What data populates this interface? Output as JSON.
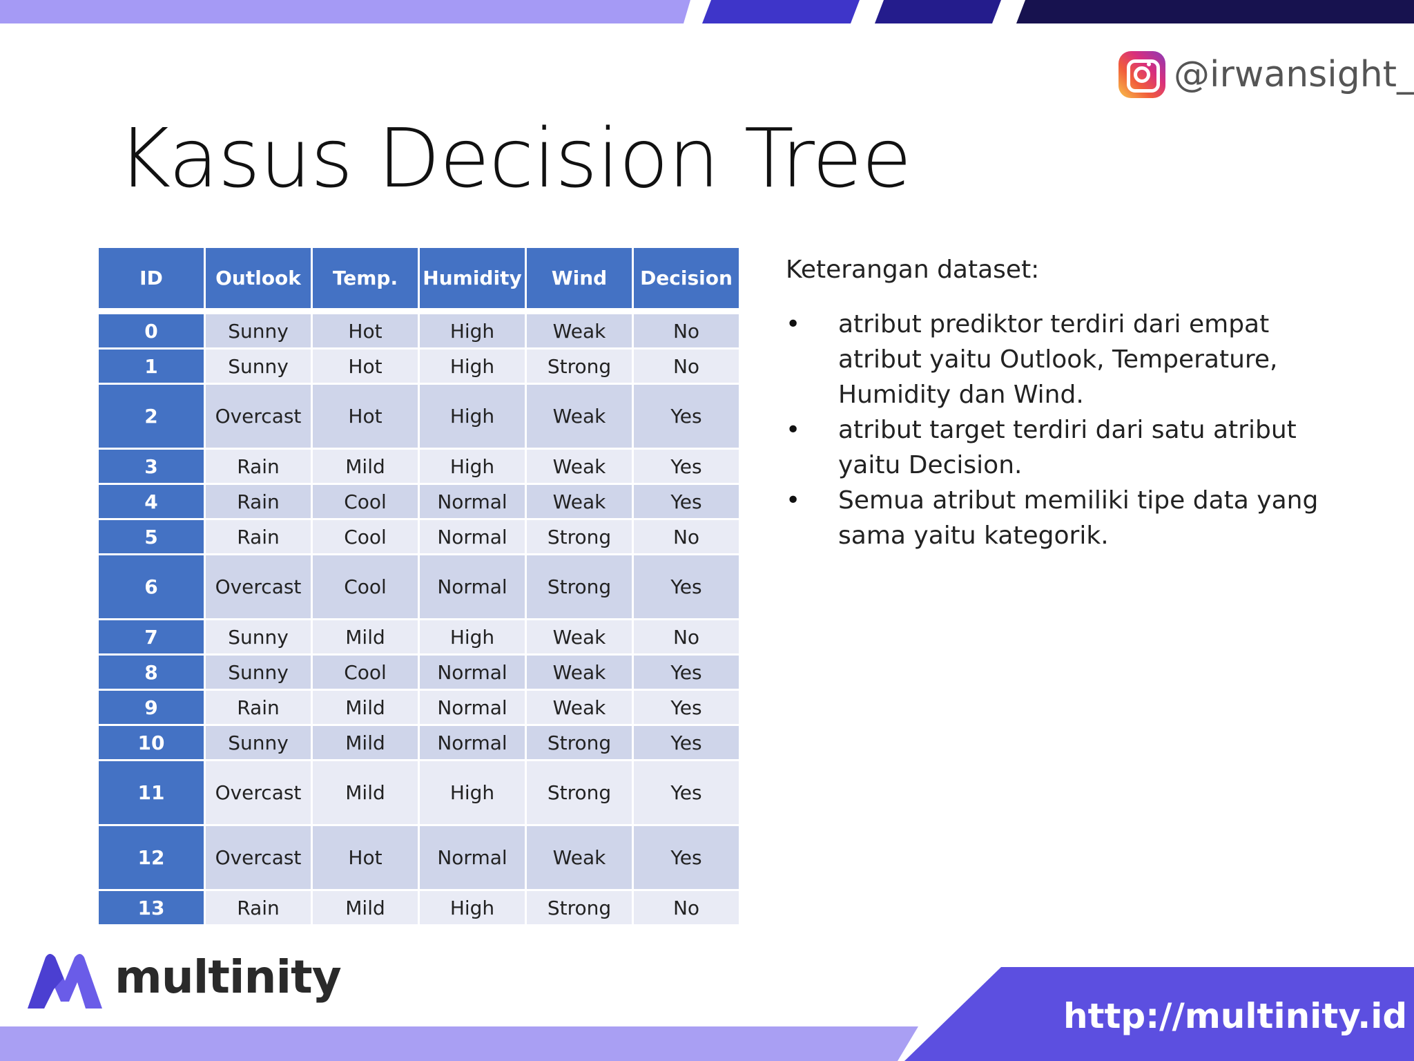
{
  "branding": {
    "instagram_handle": "@irwansight_",
    "logo_name": "multinity",
    "url": "http://multinity.id",
    "colors": {
      "top_light": "#a59af5",
      "top_mid": "#3e35c9",
      "top_dark": "#17124f",
      "bottom_light": "#a99ff3",
      "bottom_dark": "#5c4fe0",
      "table_header": "#4472c4",
      "row_odd": "#cfd5ea",
      "row_even": "#e9ebf5"
    }
  },
  "slide": {
    "title": "Kasus Decision Tree"
  },
  "table": {
    "headers": [
      "ID",
      "Outlook",
      "Temp.",
      "Humidity",
      "Wind",
      "Decision"
    ],
    "rows": [
      {
        "id": "0",
        "outlook": "Sunny",
        "temp": "Hot",
        "humidity": "High",
        "wind": "Weak",
        "decision": "No"
      },
      {
        "id": "1",
        "outlook": "Sunny",
        "temp": "Hot",
        "humidity": "High",
        "wind": "Strong",
        "decision": "No"
      },
      {
        "id": "2",
        "outlook": "Overcast",
        "temp": "Hot",
        "humidity": "High",
        "wind": "Weak",
        "decision": "Yes"
      },
      {
        "id": "3",
        "outlook": "Rain",
        "temp": "Mild",
        "humidity": "High",
        "wind": "Weak",
        "decision": "Yes"
      },
      {
        "id": "4",
        "outlook": "Rain",
        "temp": "Cool",
        "humidity": "Normal",
        "wind": "Weak",
        "decision": "Yes"
      },
      {
        "id": "5",
        "outlook": "Rain",
        "temp": "Cool",
        "humidity": "Normal",
        "wind": "Strong",
        "decision": "No"
      },
      {
        "id": "6",
        "outlook": "Overcast",
        "temp": "Cool",
        "humidity": "Normal",
        "wind": "Strong",
        "decision": "Yes"
      },
      {
        "id": "7",
        "outlook": "Sunny",
        "temp": "Mild",
        "humidity": "High",
        "wind": "Weak",
        "decision": "No"
      },
      {
        "id": "8",
        "outlook": "Sunny",
        "temp": "Cool",
        "humidity": "Normal",
        "wind": "Weak",
        "decision": "Yes"
      },
      {
        "id": "9",
        "outlook": "Rain",
        "temp": "Mild",
        "humidity": "Normal",
        "wind": "Weak",
        "decision": "Yes"
      },
      {
        "id": "10",
        "outlook": "Sunny",
        "temp": "Mild",
        "humidity": "Normal",
        "wind": "Strong",
        "decision": "Yes"
      },
      {
        "id": "11",
        "outlook": "Overcast",
        "temp": "Mild",
        "humidity": "High",
        "wind": "Strong",
        "decision": "Yes"
      },
      {
        "id": "12",
        "outlook": "Overcast",
        "temp": "Hot",
        "humidity": "Normal",
        "wind": "Weak",
        "decision": "Yes"
      },
      {
        "id": "13",
        "outlook": "Rain",
        "temp": "Mild",
        "humidity": "High",
        "wind": "Strong",
        "decision": "No"
      }
    ]
  },
  "description": {
    "heading": "Keterangan dataset:",
    "items": [
      "atribut prediktor terdiri dari empat atribut yaitu Outlook, Temperature, Humidity dan Wind.",
      "atribut target terdiri dari satu atribut yaitu Decision.",
      "Semua atribut memiliki tipe data yang sama yaitu kategorik."
    ]
  }
}
